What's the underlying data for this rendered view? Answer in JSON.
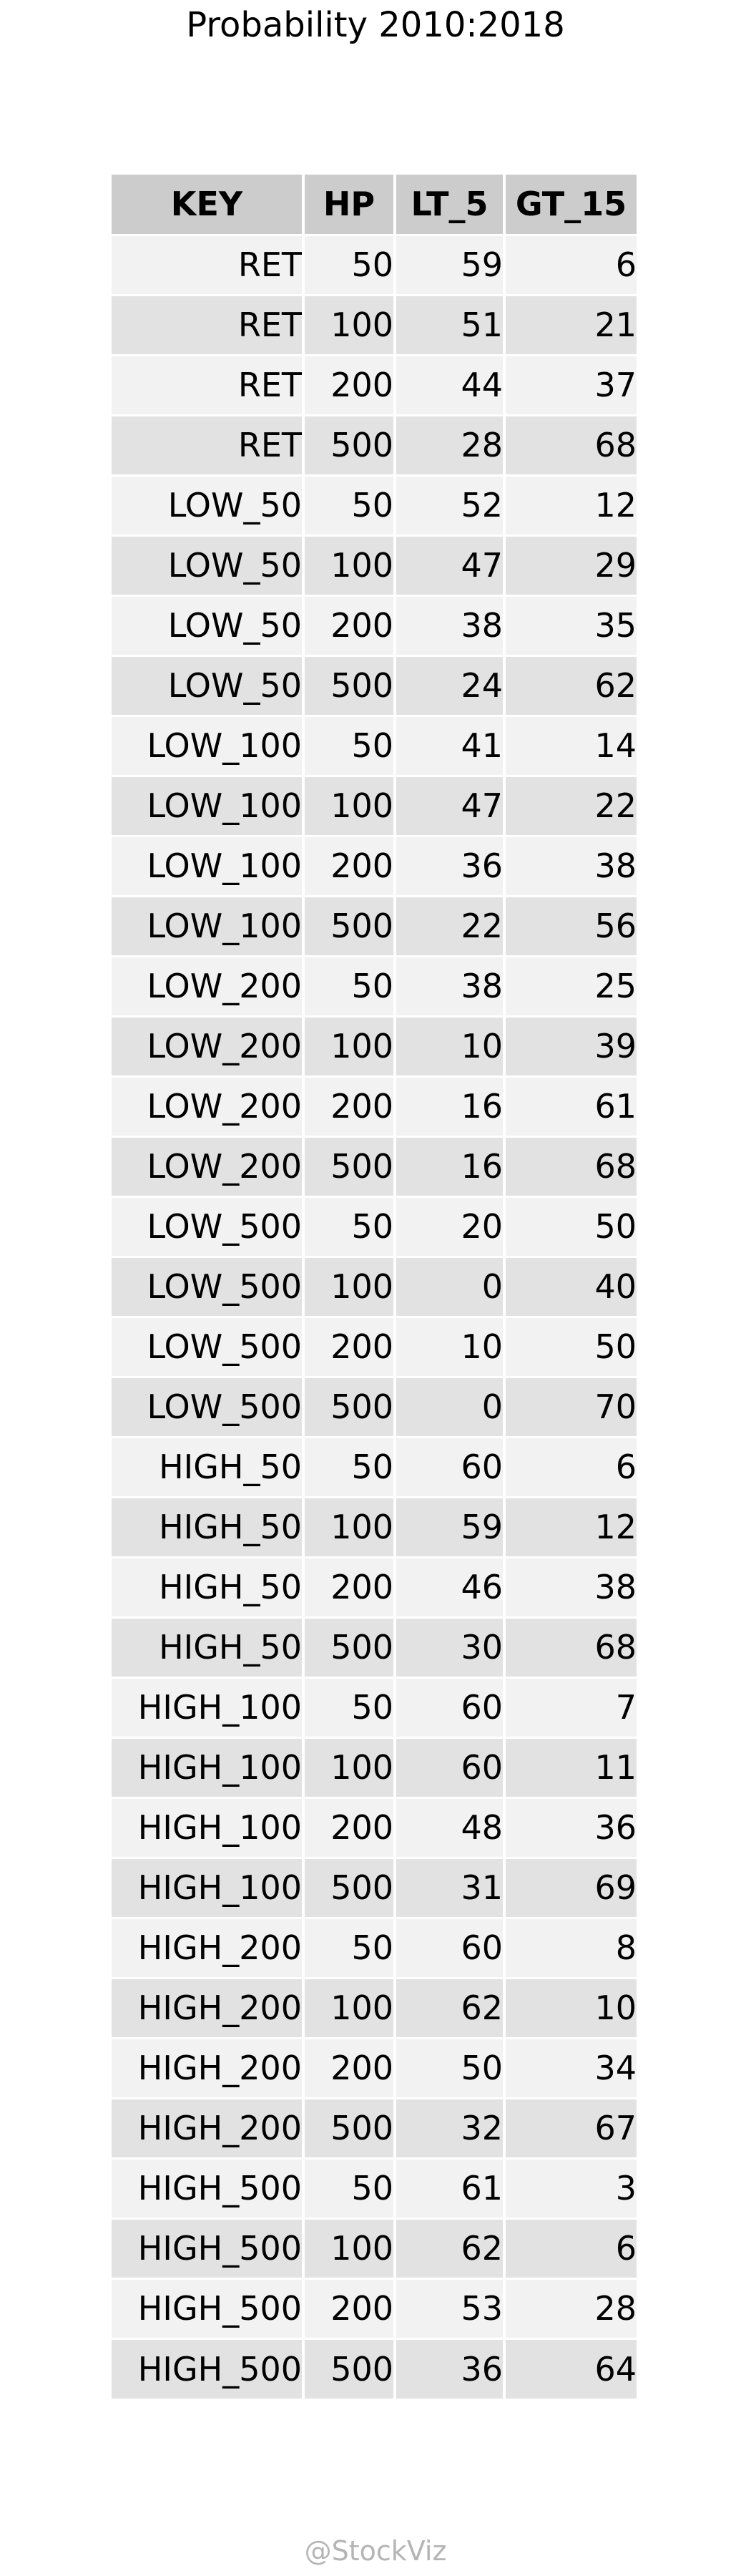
{
  "title": "Probability 2010:2018",
  "watermark": "@StockViz",
  "colors": {
    "header_bg": "#cccccc",
    "row_light": "#f2f2f2",
    "row_dark": "#e2e2e2",
    "watermark": "#b5b5b5"
  },
  "chart_data": {
    "type": "table",
    "title": "Probability 2010:2018",
    "columns": [
      "KEY",
      "HP",
      "LT_5",
      "GT_15"
    ],
    "rows": [
      [
        "RET",
        "50",
        "59",
        "6"
      ],
      [
        "RET",
        "100",
        "51",
        "21"
      ],
      [
        "RET",
        "200",
        "44",
        "37"
      ],
      [
        "RET",
        "500",
        "28",
        "68"
      ],
      [
        "LOW_50",
        "50",
        "52",
        "12"
      ],
      [
        "LOW_50",
        "100",
        "47",
        "29"
      ],
      [
        "LOW_50",
        "200",
        "38",
        "35"
      ],
      [
        "LOW_50",
        "500",
        "24",
        "62"
      ],
      [
        "LOW_100",
        "50",
        "41",
        "14"
      ],
      [
        "LOW_100",
        "100",
        "47",
        "22"
      ],
      [
        "LOW_100",
        "200",
        "36",
        "38"
      ],
      [
        "LOW_100",
        "500",
        "22",
        "56"
      ],
      [
        "LOW_200",
        "50",
        "38",
        "25"
      ],
      [
        "LOW_200",
        "100",
        "10",
        "39"
      ],
      [
        "LOW_200",
        "200",
        "16",
        "61"
      ],
      [
        "LOW_200",
        "500",
        "16",
        "68"
      ],
      [
        "LOW_500",
        "50",
        "20",
        "50"
      ],
      [
        "LOW_500",
        "100",
        "0",
        "40"
      ],
      [
        "LOW_500",
        "200",
        "10",
        "50"
      ],
      [
        "LOW_500",
        "500",
        "0",
        "70"
      ],
      [
        "HIGH_50",
        "50",
        "60",
        "6"
      ],
      [
        "HIGH_50",
        "100",
        "59",
        "12"
      ],
      [
        "HIGH_50",
        "200",
        "46",
        "38"
      ],
      [
        "HIGH_50",
        "500",
        "30",
        "68"
      ],
      [
        "HIGH_100",
        "50",
        "60",
        "7"
      ],
      [
        "HIGH_100",
        "100",
        "60",
        "11"
      ],
      [
        "HIGH_100",
        "200",
        "48",
        "36"
      ],
      [
        "HIGH_100",
        "500",
        "31",
        "69"
      ],
      [
        "HIGH_200",
        "50",
        "60",
        "8"
      ],
      [
        "HIGH_200",
        "100",
        "62",
        "10"
      ],
      [
        "HIGH_200",
        "200",
        "50",
        "34"
      ],
      [
        "HIGH_200",
        "500",
        "32",
        "67"
      ],
      [
        "HIGH_500",
        "50",
        "61",
        "3"
      ],
      [
        "HIGH_500",
        "100",
        "62",
        "6"
      ],
      [
        "HIGH_500",
        "200",
        "53",
        "28"
      ],
      [
        "HIGH_500",
        "500",
        "36",
        "64"
      ]
    ]
  }
}
